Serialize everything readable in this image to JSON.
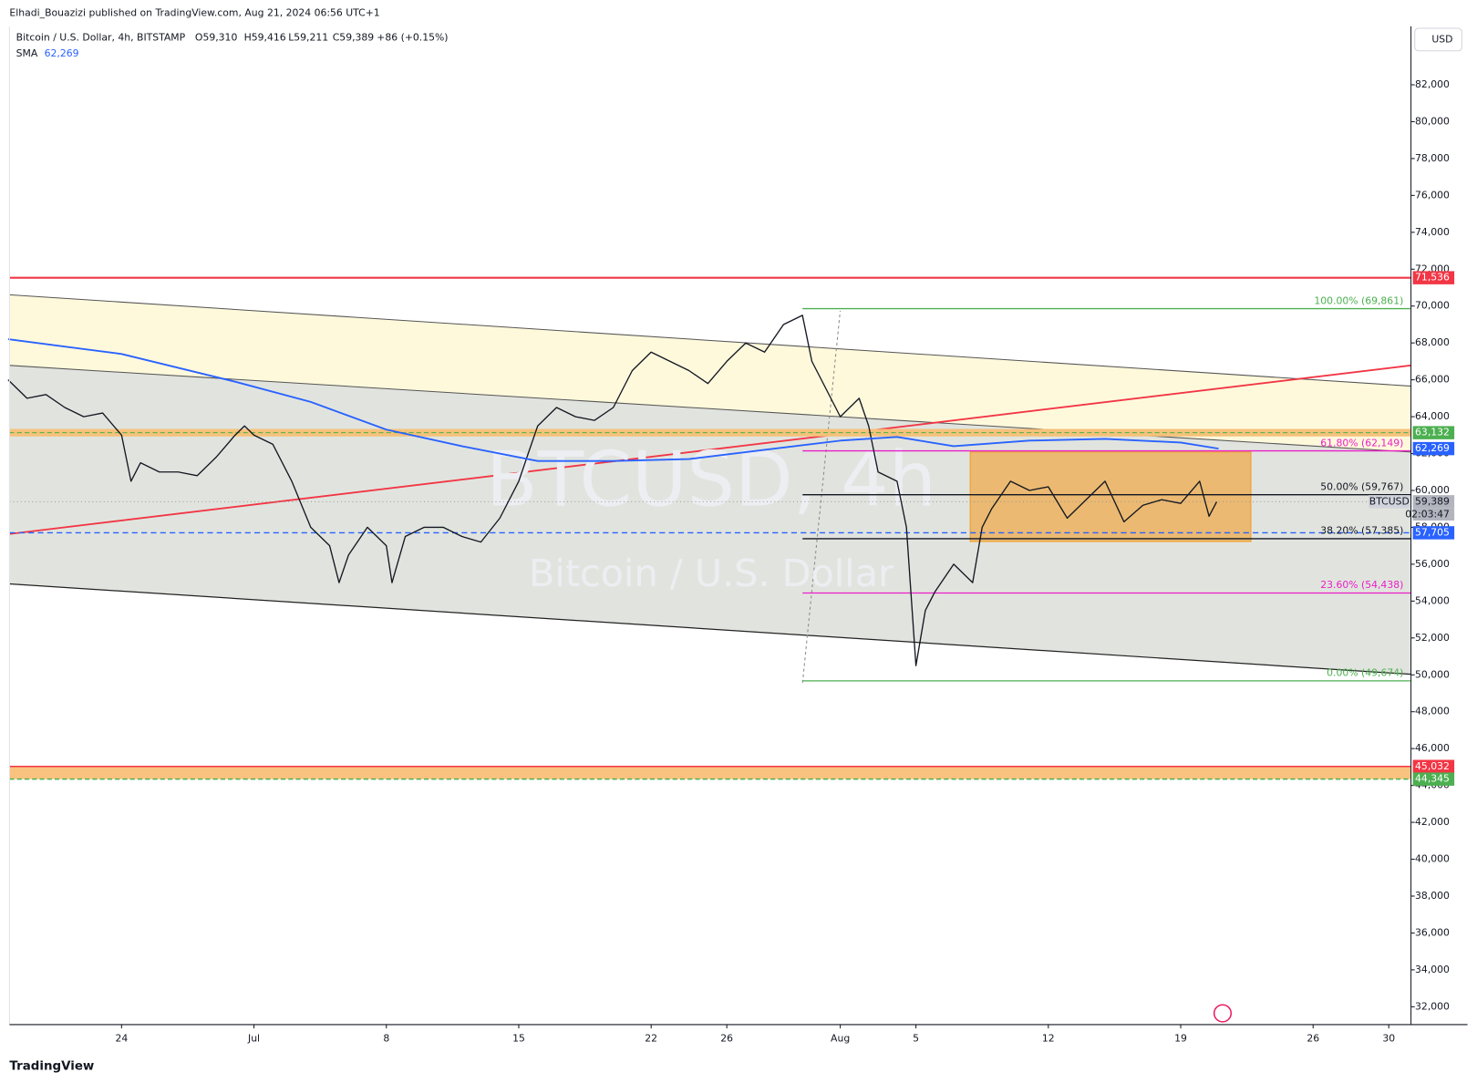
{
  "header": {
    "title": "Elhadi_Bouazizi published on TradingView.com, Aug 21, 2024 06:56 UTC+1"
  },
  "legend": {
    "symbol": "Bitcoin / U.S. Dollar, 4h, BITSTAMP",
    "open": "O59,310",
    "high": "H59,416",
    "low": "L59,211",
    "close": "C59,389",
    "change": "+86 (+0.15%)",
    "sma_value": "62,269"
  },
  "currency": "USD",
  "watermark": {
    "symbol": "BTCUSD, 4h",
    "name": "Bitcoin / U.S. Dollar"
  },
  "countdown": "02:03:47",
  "footer": {
    "brand": "TradingView"
  },
  "chart_data": {
    "type": "line",
    "xlim": [
      -6,
      68.2
    ],
    "ylim": [
      31000,
      85000
    ],
    "xticks": [
      {
        "value": 0,
        "label": "24"
      },
      {
        "value": 7,
        "label": "Jul"
      },
      {
        "value": 14,
        "label": "8"
      },
      {
        "value": 21,
        "label": "15"
      },
      {
        "value": 28,
        "label": "22"
      },
      {
        "value": 32,
        "label": "26"
      },
      {
        "value": 38,
        "label": "Aug"
      },
      {
        "value": 42,
        "label": "5"
      },
      {
        "value": 49,
        "label": "12"
      },
      {
        "value": 56,
        "label": "19"
      },
      {
        "value": 63,
        "label": "26"
      },
      {
        "value": 67,
        "label": "30"
      }
    ],
    "yticks": [
      {
        "value": 32000,
        "label": "32,000"
      },
      {
        "value": 34000,
        "label": "34,000"
      },
      {
        "value": 36000,
        "label": "36,000"
      },
      {
        "value": 38000,
        "label": "38,000"
      },
      {
        "value": 40000,
        "label": "40,000"
      },
      {
        "value": 42000,
        "label": "42,000"
      },
      {
        "value": 44000,
        "label": "44,000"
      },
      {
        "value": 46000,
        "label": "46,000"
      },
      {
        "value": 48000,
        "label": "48,000"
      },
      {
        "value": 50000,
        "label": "50,000"
      },
      {
        "value": 52000,
        "label": "52,000"
      },
      {
        "value": 54000,
        "label": "54,000"
      },
      {
        "value": 56000,
        "label": "56,000"
      },
      {
        "value": 58000,
        "label": "58,000"
      },
      {
        "value": 60000,
        "label": "60,000"
      },
      {
        "value": 62000,
        "label": "62,000"
      },
      {
        "value": 64000,
        "label": "64,000"
      },
      {
        "value": 66000,
        "label": "66,000"
      },
      {
        "value": 68000,
        "label": "68,000"
      },
      {
        "value": 70000,
        "label": "70,000"
      },
      {
        "value": 72000,
        "label": "72,000"
      },
      {
        "value": 74000,
        "label": "74,000"
      },
      {
        "value": 76000,
        "label": "76,000"
      },
      {
        "value": 78000,
        "label": "78,000"
      },
      {
        "value": 80000,
        "label": "80,000"
      },
      {
        "value": 82000,
        "label": "82,000"
      }
    ],
    "series": [
      {
        "name": "BTCUSD",
        "color": "#131722",
        "x": [
          -6,
          -5,
          -4,
          -3,
          -2,
          -1,
          0,
          0.5,
          1,
          2,
          3,
          4,
          5,
          6,
          6.5,
          7,
          8,
          9,
          10,
          11,
          11.5,
          12,
          13,
          14,
          14.3,
          15,
          16,
          17,
          18,
          19,
          20,
          21,
          21.5,
          22,
          23,
          24,
          25,
          26,
          27,
          28,
          29,
          30,
          31,
          32,
          33,
          34,
          35,
          36,
          36.5,
          37,
          38,
          39,
          39.5,
          40,
          41,
          41.5,
          42,
          42.5,
          43,
          44,
          45,
          45.5,
          46,
          47,
          48,
          49,
          50,
          51,
          52,
          53,
          54,
          55,
          56,
          57,
          57.5,
          57.9
        ],
        "values": [
          66000,
          65000,
          65200,
          64500,
          64000,
          64200,
          63000,
          60500,
          61500,
          61000,
          61000,
          60800,
          61800,
          63000,
          63500,
          63000,
          62500,
          60500,
          58000,
          57000,
          55000,
          56500,
          58000,
          57000,
          55000,
          57500,
          58000,
          58000,
          57500,
          57200,
          58500,
          60500,
          62000,
          63500,
          64500,
          64000,
          63800,
          64500,
          66500,
          67500,
          67000,
          66500,
          65800,
          67000,
          68000,
          67500,
          69000,
          69500,
          67000,
          66000,
          64000,
          65000,
          63500,
          61000,
          60500,
          58000,
          50500,
          53500,
          54500,
          56000,
          55000,
          58000,
          59000,
          60500,
          60000,
          60200,
          58500,
          59500,
          60500,
          58300,
          59200,
          59500,
          59300,
          60500,
          58600,
          59389
        ]
      },
      {
        "name": "SMA",
        "color": "#2962ff",
        "x": [
          -6,
          0,
          6,
          10,
          14,
          18,
          22,
          26,
          30,
          34,
          38,
          41,
          44,
          48,
          52,
          56,
          58
        ],
        "values": [
          68200,
          67400,
          65900,
          64800,
          63300,
          62400,
          61600,
          61600,
          61700,
          62200,
          62700,
          62900,
          62400,
          62700,
          62800,
          62600,
          62269
        ]
      }
    ]
  },
  "price_labels": [
    {
      "value": 71536,
      "label": "71,536",
      "color": "#f23645"
    },
    {
      "value": 63132,
      "label": "63,132",
      "color": "#4caf50"
    },
    {
      "value": 62269,
      "label": "62,269",
      "color": "#2962ff"
    },
    {
      "value": 59389,
      "label": "59,389",
      "color": "#b2b5be"
    },
    {
      "value": 57705,
      "label": "57,705",
      "color": "#2962ff"
    },
    {
      "value": 45032,
      "label": "45,032",
      "color": "#f23645"
    },
    {
      "value": 44345,
      "label": "44,345",
      "color": "#4caf50"
    }
  ],
  "fib_levels": [
    {
      "value": 69861,
      "label": "100.00% (69,861)",
      "color": "#4caf50"
    },
    {
      "value": 62149,
      "label": "61.80% (62,149)",
      "color": "#e91ec8"
    },
    {
      "value": 59767,
      "label": "50.00% (59,767)",
      "color": "#131722"
    },
    {
      "value": 57385,
      "label": "38.20% (57,385)",
      "color": "#131722"
    },
    {
      "value": 54438,
      "label": "23.60% (54,438)",
      "color": "#e91ec8"
    },
    {
      "value": 49674,
      "label": "0.00% (49,674)",
      "color": "#4caf50"
    }
  ]
}
